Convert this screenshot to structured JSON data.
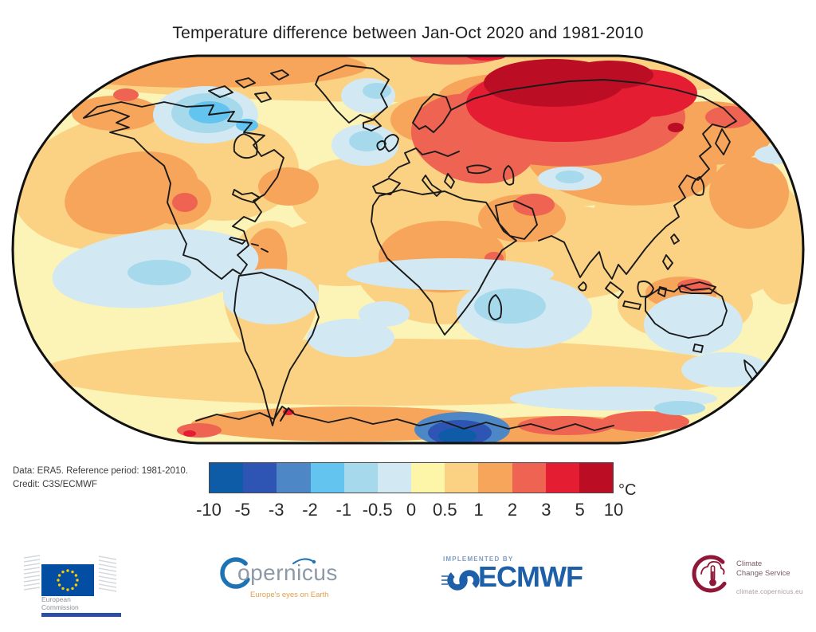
{
  "title": "Temperature difference between Jan-Oct 2020 and 1981-2010",
  "credit": {
    "line1": "Data: ERA5.  Reference period: 1981-2010.",
    "line2": "Credit: C3S/ECMWF"
  },
  "colorbar": {
    "unit": "°C",
    "ticks": [
      "-10",
      "-5",
      "-3",
      "-2",
      "-1",
      "-0.5",
      "0",
      "0.5",
      "1",
      "2",
      "3",
      "5",
      "10"
    ],
    "colors": [
      "#0e5ca7",
      "#2e55b4",
      "#4e87c6",
      "#63c5ef",
      "#a5d9eb",
      "#d2e9f4",
      "#fdf6a9",
      "#fbd284",
      "#f6a55b",
      "#ee6352",
      "#e41d33",
      "#bb0e25"
    ],
    "map_base": "#fcf3b6",
    "outline_ink": "#1a1a1a"
  },
  "chart_data": {
    "type": "heatmap",
    "title": "Temperature difference between Jan-Oct 2020 and 1981-2010",
    "units": "°C",
    "projection": "Robinson world map",
    "grid": false,
    "legend_position": "bottom",
    "colorbar_ticks": [
      -10,
      -5,
      -3,
      -2,
      -1,
      -0.5,
      0,
      0.5,
      1,
      2,
      3,
      5,
      10
    ],
    "palette": [
      "#0e5ca7",
      "#2e55b4",
      "#4e87c6",
      "#63c5ef",
      "#a5d9eb",
      "#d2e9f4",
      "#fdf6a9",
      "#fbd284",
      "#f6a55b",
      "#ee6352",
      "#e41d33",
      "#bb0e25"
    ],
    "regions": [
      {
        "region": "North-central Siberia / Arctic Russia core",
        "anomaly_c": 6.5
      },
      {
        "region": "Siberia surrounding band",
        "anomaly_c": 4
      },
      {
        "region": "Eastern Europe / western Russia",
        "anomaly_c": 2.5
      },
      {
        "region": "Northern Europe / Scandinavia",
        "anomaly_c": 1.5
      },
      {
        "region": "Northwestern Canada interior",
        "anomaly_c": -1.5
      },
      {
        "region": "Greenland patches",
        "anomaly_c": -0.7
      },
      {
        "region": "North Atlantic south of Greenland",
        "anomaly_c": -0.7
      },
      {
        "region": "Northeast Pacific",
        "anomaly_c": 1.5
      },
      {
        "region": "US Southwest hot spot",
        "anomaly_c": 2.5
      },
      {
        "region": "Sahara / North Africa",
        "anomaly_c": 1.5
      },
      {
        "region": "Middle East patches",
        "anomaly_c": 2.5
      },
      {
        "region": "Tibetan Plateau",
        "anomaly_c": -0.7
      },
      {
        "region": "Equatorial eastern Pacific (La Nina tongue)",
        "anomaly_c": -0.3
      },
      {
        "region": "Southern Indian Ocean",
        "anomaly_c": -0.8
      },
      {
        "region": "South Pacific mid-latitudes",
        "anomaly_c": -0.3
      },
      {
        "region": "Australia interior",
        "anomaly_c": 1.5
      },
      {
        "region": "Southeast Australia / Tasman area",
        "anomaly_c": -0.3
      },
      {
        "region": "East Antarctica coastal sector",
        "anomaly_c": 2.5
      },
      {
        "region": "Ross Sea sector Antarctica",
        "anomaly_c": -4.5
      },
      {
        "region": "Antarctic Peninsula spot",
        "anomaly_c": 3.5
      },
      {
        "region": "Global ocean background",
        "anomaly_c": 0.4
      }
    ]
  },
  "logos": {
    "eu": {
      "line1": "European",
      "line2": "Commission",
      "flag_blue": "#034ea2",
      "star_yellow": "#ffcc00"
    },
    "copernicus": {
      "name": "opernicus",
      "tagline": "Europe's eyes on Earth",
      "blue": "#1e73b5"
    },
    "ecmwf": {
      "pre": "IMPLEMENTED BY",
      "name": "ECMWF",
      "blue": "#1d5fa8"
    },
    "c3s": {
      "line1": "Climate",
      "line2": "Change Service",
      "url": "climate.copernicus.eu",
      "maroon": "#8f1838"
    }
  }
}
